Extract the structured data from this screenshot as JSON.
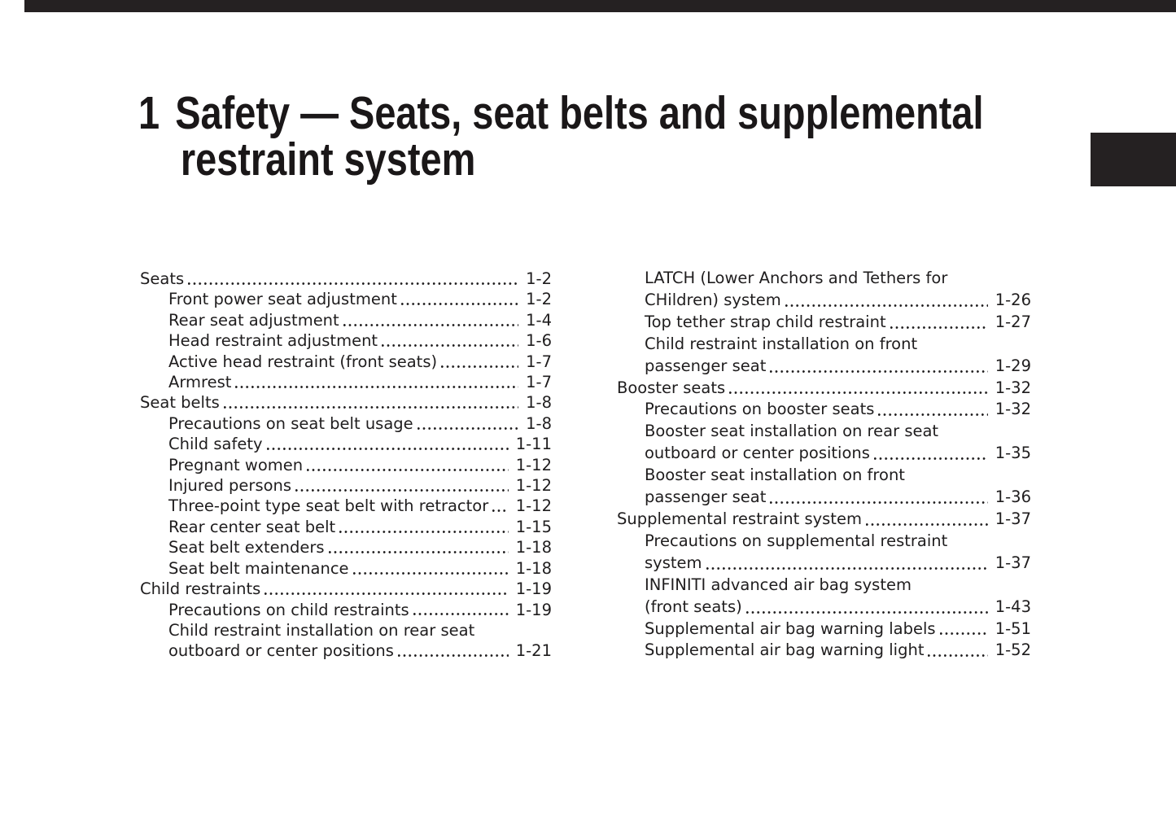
{
  "title": {
    "chapter_number": "1",
    "line1": "Safety — Seats, seat belts and supplemental",
    "line2": "restraint system"
  },
  "decorations": {
    "top_bar_color": "#252122",
    "tab_color": "#252122",
    "ink_color": "#1f1d1e"
  },
  "toc": {
    "left_column": [
      {
        "label": "Seats",
        "page": "1-2",
        "level": 0
      },
      {
        "label": "Front power seat adjustment",
        "page": "1-2",
        "level": 1
      },
      {
        "label": "Rear seat adjustment",
        "page": "1-4",
        "level": 1
      },
      {
        "label": "Head restraint adjustment",
        "page": "1-6",
        "level": 1
      },
      {
        "label": "Active head restraint (front seats)",
        "page": "1-7",
        "level": 1
      },
      {
        "label": "Armrest",
        "page": "1-7",
        "level": 1
      },
      {
        "label": "Seat belts",
        "page": "1-8",
        "level": 0
      },
      {
        "label": "Precautions on seat belt usage",
        "page": "1-8",
        "level": 1
      },
      {
        "label": "Child safety",
        "page": "1-11",
        "level": 1
      },
      {
        "label": "Pregnant women",
        "page": "1-12",
        "level": 1
      },
      {
        "label": "Injured persons",
        "page": "1-12",
        "level": 1
      },
      {
        "label": "Three-point type seat belt with retractor",
        "page": "1-12",
        "level": 1
      },
      {
        "label": "Rear center seat belt",
        "page": "1-15",
        "level": 1
      },
      {
        "label": "Seat belt extenders",
        "page": "1-18",
        "level": 1
      },
      {
        "label": "Seat belt maintenance",
        "page": "1-18",
        "level": 1
      },
      {
        "label": "Child restraints",
        "page": "1-19",
        "level": 0
      },
      {
        "label": "Precautions on child restraints",
        "page": "1-19",
        "level": 1
      },
      {
        "label": "Child restraint installation on rear seat",
        "page": "",
        "level": 1
      },
      {
        "label": "outboard or center positions",
        "page": "1-21",
        "level": 1
      }
    ],
    "right_column": [
      {
        "label": "LATCH (Lower Anchors and Tethers for",
        "page": "",
        "level": 1
      },
      {
        "label": "CHildren) system",
        "page": "1-26",
        "level": 1
      },
      {
        "label": "Top tether strap child restraint",
        "page": "1-27",
        "level": 1
      },
      {
        "label": "Child restraint installation on front",
        "page": "",
        "level": 1
      },
      {
        "label": "passenger seat",
        "page": "1-29",
        "level": 1
      },
      {
        "label": "Booster seats",
        "page": "1-32",
        "level": 0
      },
      {
        "label": "Precautions on booster seats",
        "page": "1-32",
        "level": 1
      },
      {
        "label": "Booster seat installation on rear seat",
        "page": "",
        "level": 1
      },
      {
        "label": "outboard or center positions",
        "page": "1-35",
        "level": 1
      },
      {
        "label": "Booster seat installation on front",
        "page": "",
        "level": 1
      },
      {
        "label": "passenger seat",
        "page": "1-36",
        "level": 1
      },
      {
        "label": "Supplemental restraint system",
        "page": "1-37",
        "level": 0
      },
      {
        "label": "Precautions on supplemental restraint",
        "page": "",
        "level": 1
      },
      {
        "label": "system",
        "page": "1-37",
        "level": 1
      },
      {
        "label": "INFINITI advanced air bag system",
        "page": "",
        "level": 1
      },
      {
        "label": "(front seats)",
        "page": "1-43",
        "level": 1
      },
      {
        "label": "Supplemental air bag warning labels",
        "page": "1-51",
        "level": 1
      },
      {
        "label": "Supplemental air bag warning light",
        "page": "1-52",
        "level": 1
      }
    ]
  }
}
